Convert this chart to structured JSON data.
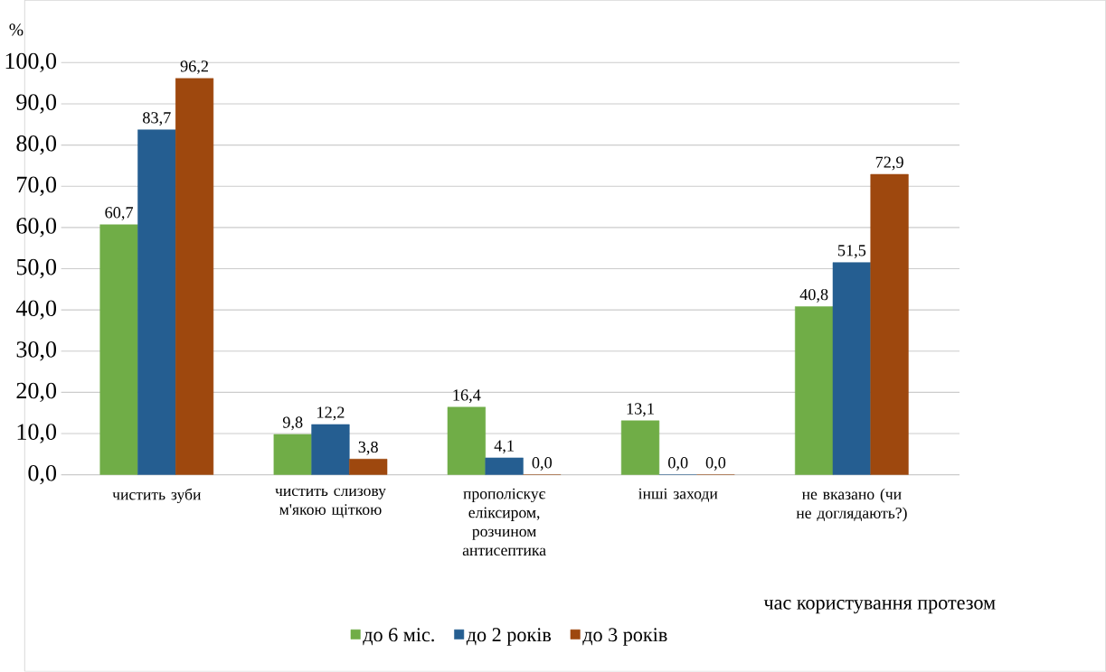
{
  "chart_data": {
    "type": "bar",
    "categories": [
      "чистить зуби",
      "чистить слизову м'якою щіткою",
      "прополіскує еліксиром, розчином антисептика",
      "інші заходи",
      "не вказано (чи не доглядають?)"
    ],
    "series": [
      {
        "name": "до 6 міс.",
        "color": "#70ad47",
        "values": [
          60.7,
          9.8,
          16.4,
          13.1,
          40.8
        ],
        "value_labels": [
          "60,7",
          "9,8",
          "16,4",
          "13,1",
          "40,8"
        ]
      },
      {
        "name": "до 2 років",
        "color": "#255e91",
        "values": [
          83.7,
          12.2,
          4.1,
          0.0,
          51.5
        ],
        "value_labels": [
          "83,7",
          "12,2",
          "4,1",
          "0,0",
          "51,5"
        ]
      },
      {
        "name": "до 3 років",
        "color": "#9e480e",
        "values": [
          96.2,
          3.8,
          0.0,
          0.0,
          72.9
        ],
        "value_labels": [
          "96,2",
          "3,8",
          "0,0",
          "0,0",
          "72,9"
        ]
      }
    ],
    "ylabel": "%",
    "xlabel": "час користування протезом",
    "ylim": [
      0,
      100
    ],
    "yticks": [
      {
        "value": 0,
        "label": "0,0"
      },
      {
        "value": 10,
        "label": "10,0"
      },
      {
        "value": 20,
        "label": "20,0"
      },
      {
        "value": 30,
        "label": "30,0"
      },
      {
        "value": 40,
        "label": "40,0"
      },
      {
        "value": 50,
        "label": "50,0"
      },
      {
        "value": 60,
        "label": "60,0"
      },
      {
        "value": 70,
        "label": "70,0"
      },
      {
        "value": 80,
        "label": "80,0"
      },
      {
        "value": 90,
        "label": "90,0"
      },
      {
        "value": 100,
        "label": "100,0"
      }
    ],
    "grid": "y",
    "legend": "bottom"
  }
}
